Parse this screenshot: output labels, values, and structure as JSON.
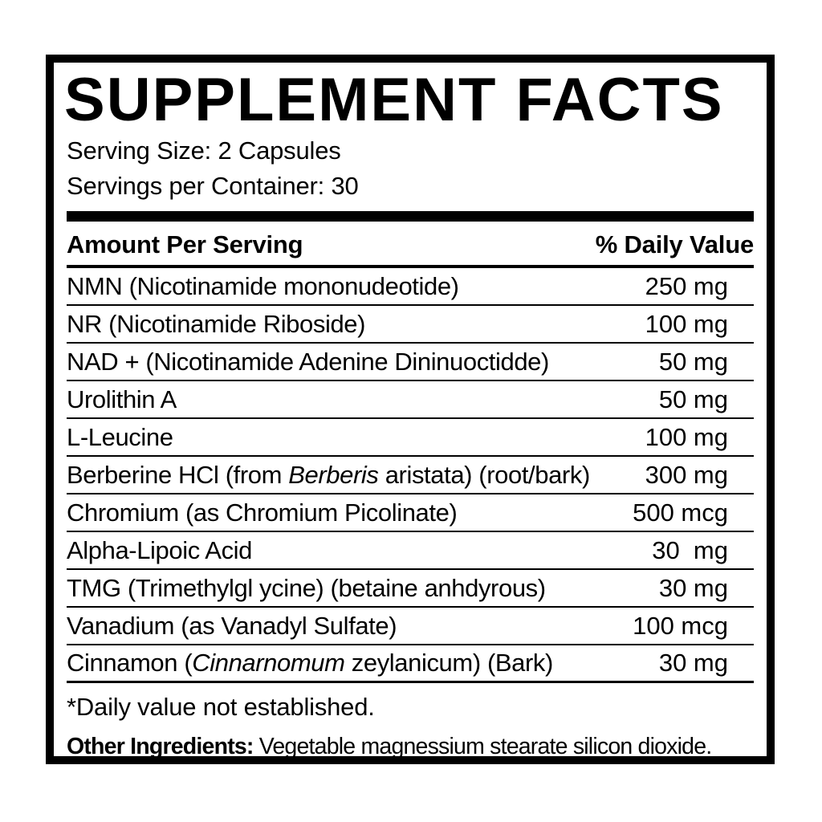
{
  "page": {
    "background_color": "#ffffff",
    "text_color": "#000000"
  },
  "label": {
    "title": "SUPPLEMENT FACTS",
    "serving_size": "Serving Size: 2 Capsules",
    "servings_per_container": "Servings per Container: 30",
    "columns": {
      "amount_header": "Amount Per Serving",
      "daily_value_header": "% Daily Value"
    },
    "rows": [
      {
        "parts": [
          {
            "t": "NMN (Nicotinamide mononudeotide)"
          }
        ],
        "amount": "250 mg"
      },
      {
        "parts": [
          {
            "t": "NR (Nicotinamide Riboside)"
          }
        ],
        "amount": "100 mg"
      },
      {
        "parts": [
          {
            "t": "NAD + (Nicotinamide Adenine Dininuoctidde)"
          }
        ],
        "amount": "50 mg"
      },
      {
        "parts": [
          {
            "t": "Urolithin A"
          }
        ],
        "amount": "50 mg"
      },
      {
        "parts": [
          {
            "t": "L-Leucine"
          }
        ],
        "amount": "100 mg"
      },
      {
        "parts": [
          {
            "t": "Berberine HCl (from "
          },
          {
            "t": "Berberis",
            "i": true
          },
          {
            "t": " aristata) (root/bark)"
          }
        ],
        "amount": "300 mg"
      },
      {
        "parts": [
          {
            "t": "Chromium (as Chromium Picolinate)"
          }
        ],
        "amount": "500 mcg"
      },
      {
        "parts": [
          {
            "t": "Alpha-Lipoic Acid"
          }
        ],
        "amount": "30  mg"
      },
      {
        "parts": [
          {
            "t": "TMG (Trimethylgl ycine) (betaine anhdyrous)"
          }
        ],
        "amount": "30 mg"
      },
      {
        "parts": [
          {
            "t": "Vanadium (as Vanadyl Sulfate)"
          }
        ],
        "amount": "100 mcg"
      },
      {
        "parts": [
          {
            "t": "Cinnamon ("
          },
          {
            "t": "Cinnarnomum",
            "i": true
          },
          {
            "t": " zeylanicum) (Bark)"
          }
        ],
        "amount": "30 mg"
      }
    ],
    "footnote": "*Daily value not established.",
    "other_ingredients": {
      "label": "Other Ingredients:",
      "text": " Vegetable magnessium stearate silicon dioxide."
    }
  }
}
